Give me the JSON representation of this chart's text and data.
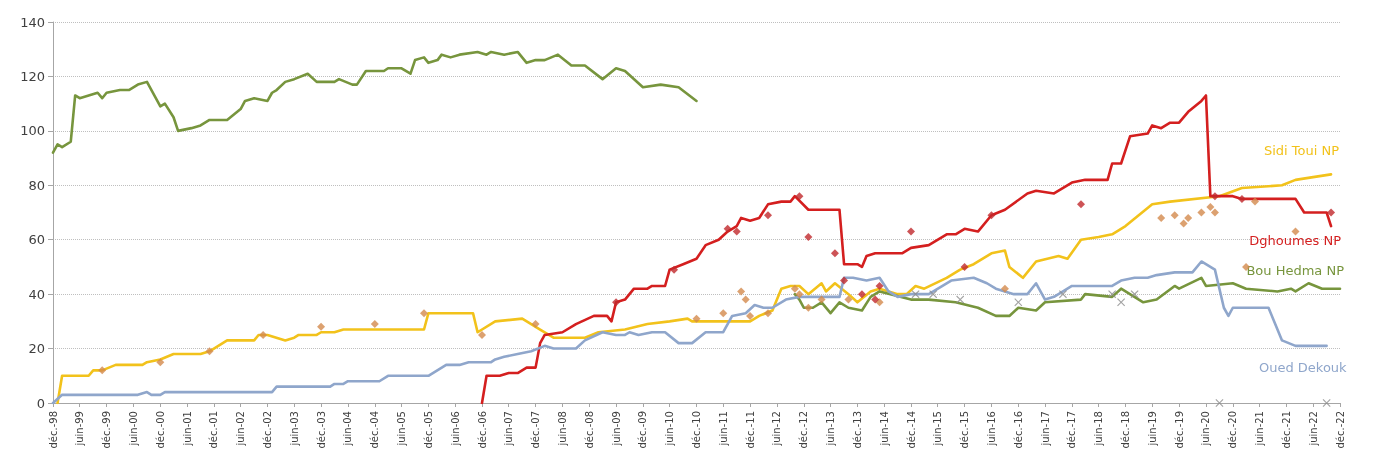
{
  "chart_data": {
    "type": "line",
    "ylim": [
      0,
      140
    ],
    "yticks": [
      0,
      20,
      40,
      60,
      80,
      100,
      120,
      140
    ],
    "grid": "y",
    "line_style": "solid",
    "xlim": [
      "1998-12",
      "2022-12"
    ],
    "xticks": [
      {
        "value": "1998-12",
        "label": "déc.-98"
      },
      {
        "value": "1999-06",
        "label": "juin-99"
      },
      {
        "value": "1999-12",
        "label": "déc.-99"
      },
      {
        "value": "2000-06",
        "label": "juin-00"
      },
      {
        "value": "2000-12",
        "label": "déc.-00"
      },
      {
        "value": "2001-06",
        "label": "juin-01"
      },
      {
        "value": "2001-12",
        "label": "déc.-01"
      },
      {
        "value": "2002-06",
        "label": "juin-02"
      },
      {
        "value": "2002-12",
        "label": "déc.-02"
      },
      {
        "value": "2003-06",
        "label": "juin-03"
      },
      {
        "value": "2003-12",
        "label": "déc.-03"
      },
      {
        "value": "2004-06",
        "label": "juin-04"
      },
      {
        "value": "2004-12",
        "label": "déc.-04"
      },
      {
        "value": "2005-06",
        "label": "juin-05"
      },
      {
        "value": "2005-12",
        "label": "déc.-05"
      },
      {
        "value": "2006-06",
        "label": "juin-06"
      },
      {
        "value": "2006-12",
        "label": "déc.-06"
      },
      {
        "value": "2007-06",
        "label": "juin-07"
      },
      {
        "value": "2007-12",
        "label": "déc.-07"
      },
      {
        "value": "2008-06",
        "label": "juin-08"
      },
      {
        "value": "2008-12",
        "label": "déc.-08"
      },
      {
        "value": "2009-06",
        "label": "juin-09"
      },
      {
        "value": "2009-12",
        "label": "déc.-09"
      },
      {
        "value": "2010-06",
        "label": "juin-10"
      },
      {
        "value": "2010-12",
        "label": "déc.-10"
      },
      {
        "value": "2011-06",
        "label": "juin-11"
      },
      {
        "value": "2011-12",
        "label": "déc.-11"
      },
      {
        "value": "2012-06",
        "label": "juin-12"
      },
      {
        "value": "2012-12",
        "label": "déc.-12"
      },
      {
        "value": "2013-06",
        "label": "juin-13"
      },
      {
        "value": "2013-12",
        "label": "déc.-13"
      },
      {
        "value": "2014-06",
        "label": "juin-14"
      },
      {
        "value": "2014-12",
        "label": "déc.-14"
      },
      {
        "value": "2015-06",
        "label": "juin-15"
      },
      {
        "value": "2015-12",
        "label": "déc.-15"
      },
      {
        "value": "2016-06",
        "label": "juin-16"
      },
      {
        "value": "2016-12",
        "label": "déc.-16"
      },
      {
        "value": "2017-06",
        "label": "juin-17"
      },
      {
        "value": "2017-12",
        "label": "déc.-17"
      },
      {
        "value": "2018-06",
        "label": "juin-18"
      },
      {
        "value": "2018-12",
        "label": "déc.-18"
      },
      {
        "value": "2019-06",
        "label": "juin-19"
      },
      {
        "value": "2019-12",
        "label": "déc.-19"
      },
      {
        "value": "2020-06",
        "label": "juin-20"
      },
      {
        "value": "2020-12",
        "label": "déc.-20"
      },
      {
        "value": "2021-06",
        "label": "juin-21"
      },
      {
        "value": "2021-12",
        "label": "déc.-21"
      },
      {
        "value": "2022-06",
        "label": "juin-22"
      },
      {
        "value": "2022-12",
        "label": "déc.-22"
      }
    ],
    "series": [
      {
        "name": "Sidi Toui NP",
        "color": "#f2c21b",
        "x": [
          "1999-01",
          "1999-02",
          "1999-08",
          "1999-09",
          "1999-11",
          "2000-02",
          "2000-08",
          "2000-09",
          "2000-12",
          "2001-03",
          "2001-09",
          "2001-11",
          "2002-03",
          "2002-09",
          "2002-10",
          "2002-12",
          "2003-04",
          "2003-06",
          "2003-07",
          "2003-11",
          "2003-12",
          "2004-03",
          "2004-05",
          "2005-11",
          "2005-12",
          "2006-10",
          "2006-11",
          "2007-03",
          "2007-09",
          "2008-01",
          "2008-04",
          "2008-11",
          "2009-02",
          "2009-08",
          "2010-01",
          "2010-06",
          "2010-10",
          "2010-11",
          "2011-12",
          "2012-02",
          "2012-05",
          "2012-07",
          "2012-09",
          "2012-11",
          "2013-01",
          "2013-04",
          "2013-05",
          "2013-07",
          "2013-10",
          "2013-12",
          "2014-03",
          "2014-05",
          "2014-09",
          "2014-11",
          "2015-01",
          "2015-03",
          "2015-08",
          "2015-11",
          "2016-02",
          "2016-06",
          "2016-09",
          "2016-10",
          "2017-01",
          "2017-04",
          "2017-09",
          "2017-11",
          "2018-02",
          "2018-06",
          "2018-09",
          "2018-12",
          "2019-03",
          "2019-06",
          "2019-10",
          "2020-09",
          "2021-02",
          "2021-11",
          "2022-02",
          "2022-06",
          "2022-10"
        ],
        "values": [
          0,
          10,
          10,
          12,
          12,
          14,
          14,
          15,
          16,
          18,
          18,
          19,
          23,
          23,
          25,
          25,
          23,
          24,
          25,
          25,
          26,
          26,
          27,
          27,
          33,
          33,
          26,
          30,
          31,
          27,
          24,
          24,
          26,
          27,
          29,
          30,
          31,
          30,
          30,
          32,
          34,
          42,
          43,
          43,
          40,
          44,
          41,
          44,
          40,
          37,
          41,
          42,
          40,
          40,
          43,
          42,
          46,
          49,
          51,
          55,
          56,
          50,
          46,
          52,
          54,
          53,
          60,
          61,
          62,
          65,
          69,
          73,
          74,
          76,
          79,
          80,
          82,
          83,
          84
        ]
      },
      {
        "name": "Dghoumes NP",
        "color": "#d41f1f",
        "x": [
          "2006-12",
          "2007-01",
          "2007-04",
          "2007-06",
          "2007-08",
          "2007-10",
          "2007-12",
          "2008-01",
          "2008-02",
          "2008-06",
          "2008-09",
          "2009-01",
          "2009-04",
          "2009-05",
          "2009-06",
          "2009-08",
          "2009-10",
          "2010-01",
          "2010-02",
          "2010-05",
          "2010-06",
          "2010-09",
          "2010-12",
          "2011-02",
          "2011-05",
          "2011-07",
          "2011-09",
          "2011-10",
          "2011-12",
          "2012-02",
          "2012-04",
          "2012-07",
          "2012-09",
          "2012-10",
          "2013-01",
          "2013-03",
          "2013-08",
          "2013-09",
          "2013-12",
          "2014-01",
          "2014-02",
          "2014-04",
          "2014-10",
          "2014-12",
          "2015-04",
          "2015-08",
          "2015-10",
          "2015-12",
          "2016-03",
          "2016-06",
          "2016-09",
          "2017-02",
          "2017-04",
          "2017-08",
          "2017-12",
          "2018-03",
          "2018-08",
          "2018-09",
          "2018-11",
          "2019-01",
          "2019-05",
          "2019-06",
          "2019-08",
          "2019-10",
          "2019-12",
          "2020-02",
          "2020-05",
          "2020-06",
          "2020-07",
          "2020-12",
          "2021-02",
          "2022-02",
          "2022-04",
          "2022-09",
          "2022-10"
        ],
        "values": [
          0,
          10,
          10,
          11,
          11,
          13,
          13,
          22,
          25,
          26,
          29,
          32,
          32,
          30,
          37,
          38,
          42,
          42,
          43,
          43,
          49,
          51,
          53,
          58,
          60,
          63,
          65,
          68,
          67,
          68,
          73,
          74,
          74,
          76,
          71,
          71,
          71,
          51,
          51,
          50,
          54,
          55,
          55,
          57,
          58,
          62,
          62,
          64,
          63,
          69,
          71,
          77,
          78,
          77,
          81,
          82,
          82,
          88,
          88,
          98,
          99,
          102,
          101,
          103,
          103,
          107,
          111,
          113,
          76,
          76,
          75,
          75,
          70,
          70,
          65
        ]
      },
      {
        "name": "Bou Hedma NP",
        "color": "#77953d",
        "x": [
          "1998-12",
          "1999-01",
          "1999-02",
          "1999-04",
          "1999-05",
          "1999-06",
          "1999-10",
          "1999-11",
          "1999-12",
          "2000-03",
          "2000-05",
          "2000-07",
          "2000-09",
          "2000-12",
          "2001-01",
          "2001-03",
          "2001-04",
          "2001-07",
          "2001-09",
          "2001-11",
          "2002-03",
          "2002-06",
          "2002-07",
          "2002-09",
          "2002-12",
          "2003-01",
          "2003-02",
          "2003-04",
          "2003-06",
          "2003-09",
          "2003-11",
          "2004-03",
          "2004-04",
          "2004-07",
          "2004-08",
          "2004-10",
          "2005-02",
          "2005-03",
          "2005-06",
          "2005-08",
          "2005-09",
          "2005-11",
          "2005-12",
          "2006-02",
          "2006-03",
          "2006-05",
          "2006-07",
          "2006-11",
          "2007-01",
          "2007-02",
          "2007-05",
          "2007-08",
          "2007-10",
          "2007-12",
          "2008-02",
          "2008-05",
          "2008-08",
          "2008-11",
          "2009-03",
          "2009-06",
          "2009-08",
          "2009-12",
          "2010-04",
          "2010-08",
          "2010-12",
          "2011-10",
          "2012-10",
          "2012-11",
          "2012-12",
          "2013-02",
          "2013-04",
          "2013-06",
          "2013-08",
          "2013-10",
          "2014-01",
          "2014-03",
          "2014-05",
          "2014-12",
          "2015-04",
          "2015-10",
          "2016-03",
          "2016-07",
          "2016-10",
          "2016-12",
          "2017-04",
          "2017-06",
          "2018-02",
          "2018-03",
          "2018-09",
          "2018-11",
          "2019-04",
          "2019-07",
          "2019-11",
          "2019-12",
          "2020-05",
          "2020-06",
          "2020-12",
          "2021-03",
          "2021-10",
          "2022-01",
          "2022-02",
          "2022-05",
          "2022-08",
          "2022-12"
        ],
        "values": [
          92,
          95,
          94,
          96,
          113,
          112,
          114,
          112,
          114,
          115,
          115,
          117,
          118,
          109,
          110,
          105,
          100,
          101,
          102,
          104,
          104,
          108,
          111,
          112,
          111,
          114,
          115,
          118,
          119,
          121,
          118,
          118,
          119,
          117,
          117,
          122,
          122,
          123,
          123,
          121,
          126,
          127,
          125,
          126,
          128,
          127,
          128,
          129,
          128,
          129,
          128,
          129,
          125,
          126,
          126,
          128,
          124,
          124,
          119,
          123,
          122,
          116,
          117,
          116,
          111,
          null,
          40,
          38,
          35,
          35,
          37,
          33,
          37,
          35,
          34,
          39,
          41,
          38,
          38,
          37,
          35,
          32,
          32,
          35,
          34,
          37,
          38,
          40,
          39,
          42,
          37,
          38,
          43,
          42,
          46,
          43,
          44,
          42,
          41,
          42,
          41,
          44,
          42,
          42
        ]
      },
      {
        "name": "Oued Dekouk",
        "color": "#8fa6cb",
        "x": [
          "1998-12",
          "1999-02",
          "2000-07",
          "2000-09",
          "2000-10",
          "2000-12",
          "2001-01",
          "2003-01",
          "2003-02",
          "2004-02",
          "2004-03",
          "2004-05",
          "2004-06",
          "2005-01",
          "2005-03",
          "2005-12",
          "2006-04",
          "2006-07",
          "2006-09",
          "2007-02",
          "2007-03",
          "2007-05",
          "2007-08",
          "2007-11",
          "2008-02",
          "2008-04",
          "2008-09",
          "2008-11",
          "2009-03",
          "2009-06",
          "2009-08",
          "2009-09",
          "2009-11",
          "2010-02",
          "2010-05",
          "2010-08",
          "2010-11",
          "2011-02",
          "2011-06",
          "2011-08",
          "2011-11",
          "2012-01",
          "2012-03",
          "2012-05",
          "2012-08",
          "2012-11",
          "2013-08",
          "2013-09",
          "2013-11",
          "2014-02",
          "2014-05",
          "2014-07",
          "2014-09",
          "2014-12",
          "2015-04",
          "2015-09",
          "2016-02",
          "2016-05",
          "2016-07",
          "2016-11",
          "2017-02",
          "2017-04",
          "2017-06",
          "2017-08",
          "2017-12",
          "2018-09",
          "2018-11",
          "2019-02",
          "2019-05",
          "2019-07",
          "2019-11",
          "2020-03",
          "2020-05",
          "2020-08",
          "2020-10",
          "2020-11",
          "2020-12",
          "2021-08",
          "2021-11",
          "2022-02",
          "2022-09"
        ],
        "values": [
          0,
          3,
          3,
          4,
          3,
          3,
          4,
          4,
          6,
          6,
          7,
          7,
          8,
          8,
          10,
          10,
          14,
          14,
          15,
          15,
          16,
          17,
          18,
          19,
          21,
          20,
          20,
          23,
          26,
          25,
          25,
          26,
          25,
          26,
          26,
          22,
          22,
          26,
          26,
          32,
          33,
          36,
          35,
          35,
          38,
          39,
          39,
          46,
          46,
          45,
          46,
          41,
          39,
          40,
          40,
          45,
          46,
          44,
          42,
          40,
          40,
          44,
          38,
          39,
          43,
          43,
          45,
          46,
          46,
          47,
          48,
          48,
          52,
          49,
          35,
          32,
          35,
          35,
          23,
          21,
          21
        ]
      },
      {
        "type": "scatter",
        "marker": "diamond",
        "color": "#d38a4c",
        "x": [
          "1999-11",
          "2000-12",
          "2001-11",
          "2002-11",
          "2003-12",
          "2004-12",
          "2005-11",
          "2006-12",
          "2007-12",
          "2010-12",
          "2011-06",
          "2011-10",
          "2011-11",
          "2011-12",
          "2012-04",
          "2012-10",
          "2012-11",
          "2013-01",
          "2013-04",
          "2013-10",
          "2014-05",
          "2016-09",
          "2019-08",
          "2019-11",
          "2020-01",
          "2020-02",
          "2020-05",
          "2020-07",
          "2020-08",
          "2021-03",
          "2021-05",
          "2022-02"
        ],
        "values": [
          12,
          15,
          19,
          25,
          28,
          29,
          33,
          25,
          29,
          31,
          33,
          41,
          38,
          32,
          33,
          42,
          40,
          35,
          38,
          38,
          37,
          42,
          68,
          69,
          66,
          68,
          70,
          72,
          70,
          50,
          74,
          63
        ]
      },
      {
        "type": "scatter",
        "marker": "diamond",
        "color": "#c0282c",
        "x": [
          "2009-06",
          "2010-07",
          "2011-07",
          "2011-09",
          "2012-04",
          "2012-11",
          "2013-01",
          "2013-07",
          "2013-09",
          "2014-01",
          "2014-04",
          "2014-05",
          "2014-12",
          "2015-12",
          "2016-06",
          "2018-02",
          "2020-08",
          "2021-02",
          "2022-10"
        ],
        "values": [
          37,
          49,
          64,
          63,
          69,
          76,
          61,
          55,
          45,
          40,
          38,
          43,
          63,
          50,
          69,
          73,
          76,
          75,
          70
        ]
      },
      {
        "type": "scatter",
        "marker": "cross",
        "color": "#8c8c8c",
        "x": [
          "2015-01",
          "2015-05",
          "2015-11",
          "2016-12",
          "2017-10",
          "2018-09",
          "2018-11",
          "2019-02",
          "2020-09",
          "2022-09"
        ],
        "values": [
          40,
          40,
          38,
          37,
          40,
          40,
          37,
          40,
          0,
          0
        ]
      }
    ]
  }
}
